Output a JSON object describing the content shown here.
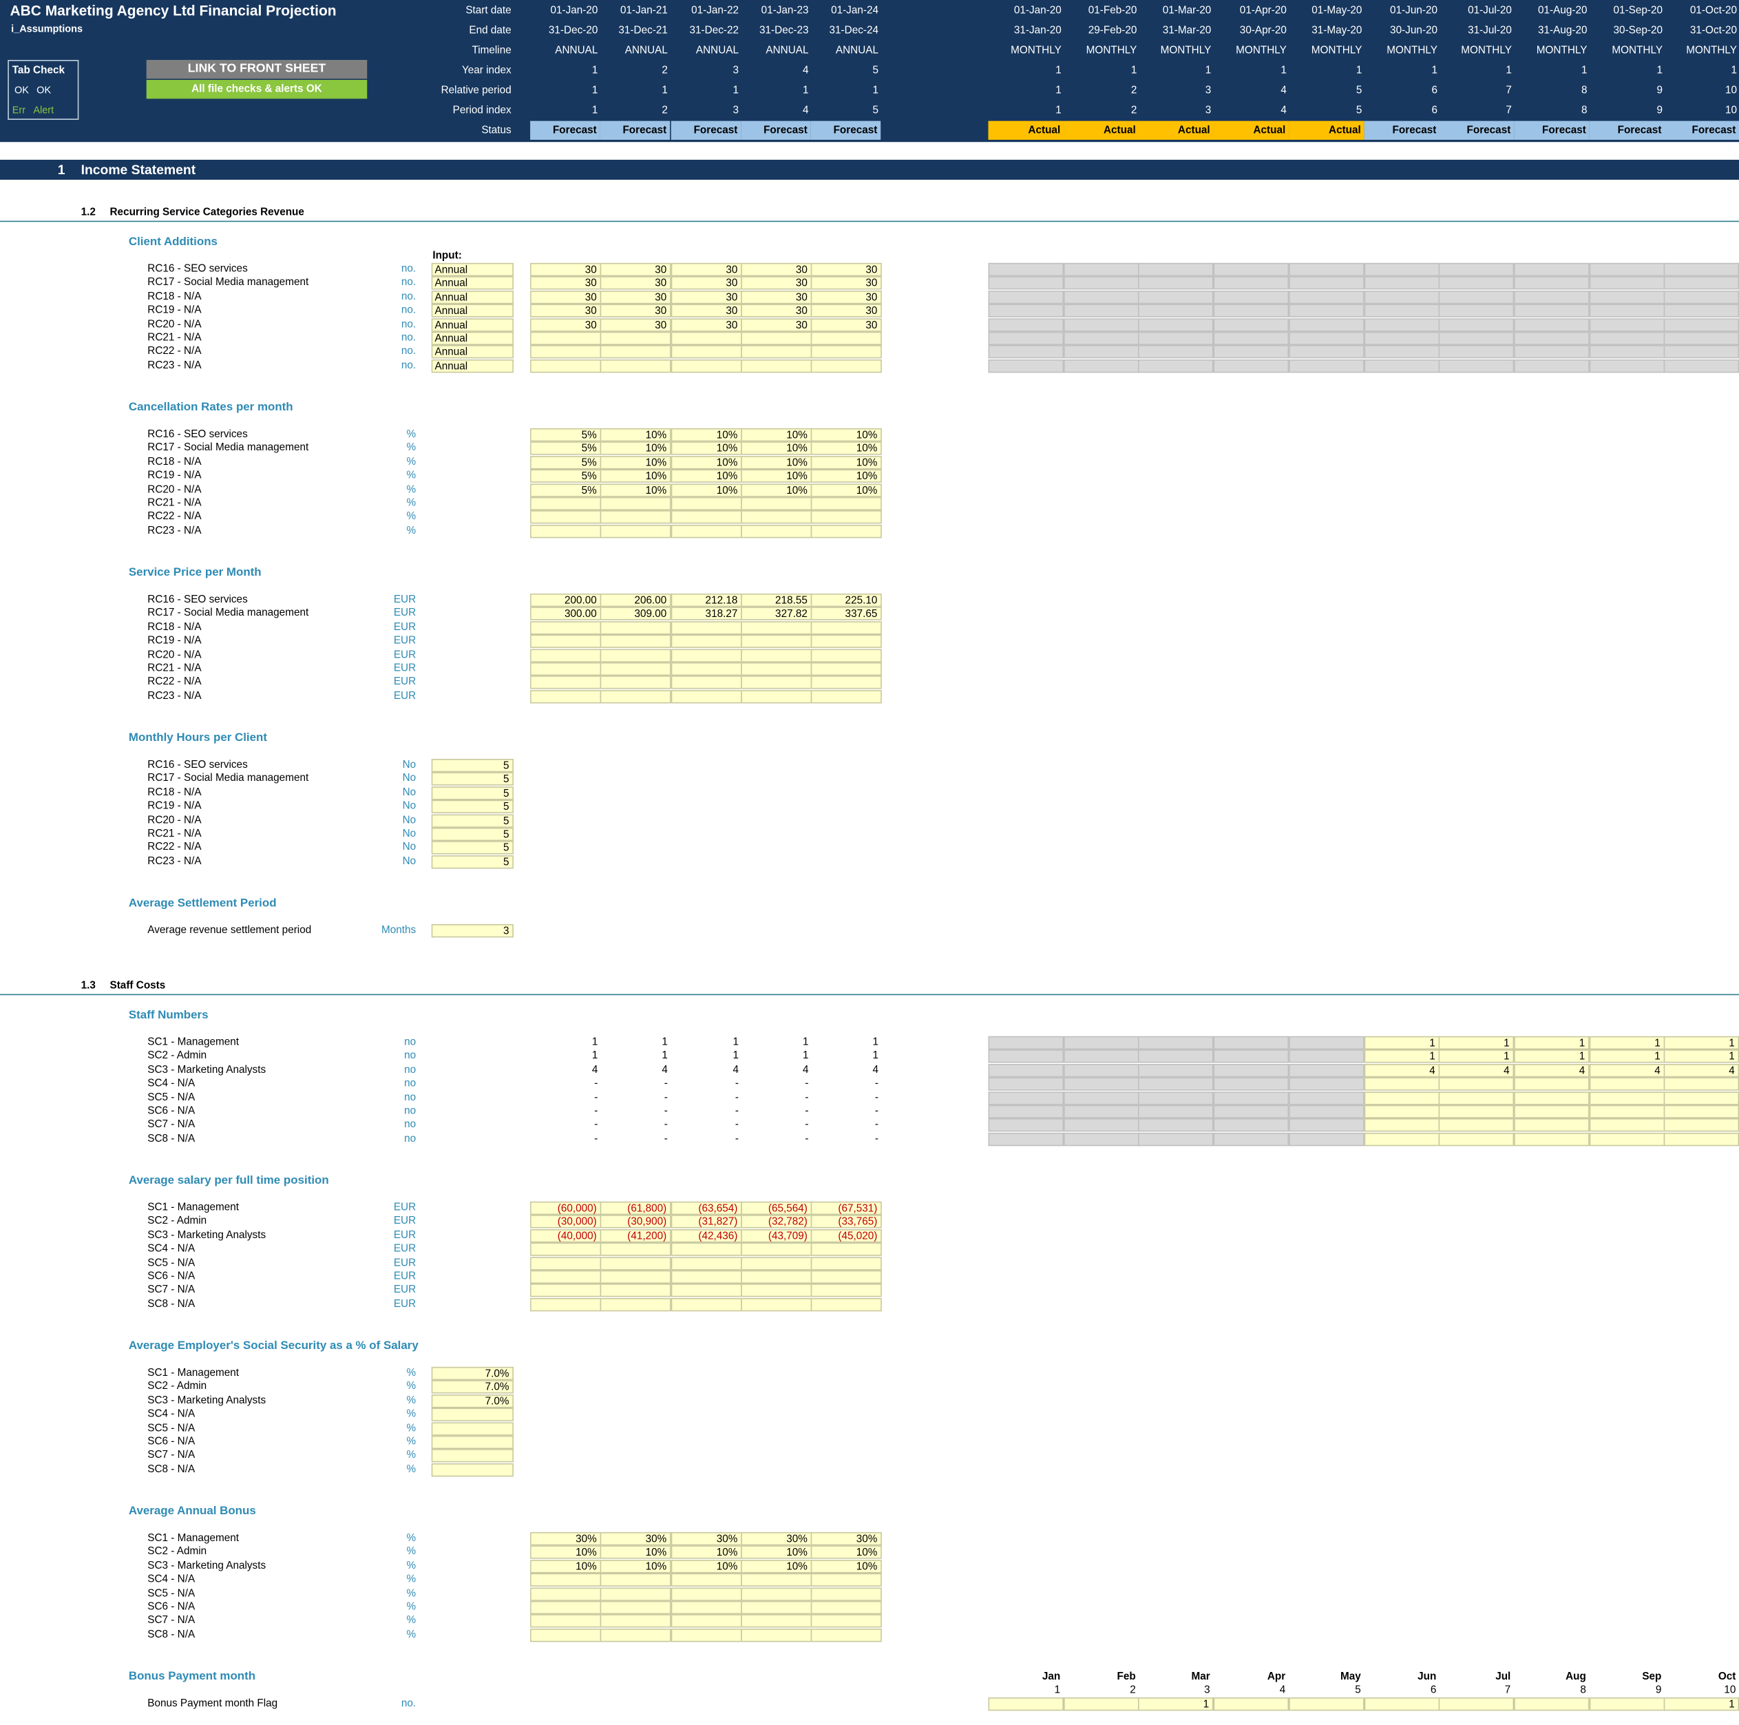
{
  "header": {
    "title": "ABC Marketing Agency Ltd Financial Projection",
    "sheet_name": "i_Assumptions",
    "tab_check": {
      "title": "Tab Check",
      "ok_1": "OK",
      "ok_2": "OK",
      "err": "Err",
      "alert": "Alert"
    },
    "link_button": "LINK TO FRONT SHEET",
    "checks_status": "All file checks & alerts OK",
    "row_labels": [
      "Start date",
      "End date",
      "Timeline",
      "Year index",
      "Relative period",
      "Period index",
      "Status"
    ],
    "annual": {
      "start": [
        "01-Jan-20",
        "01-Jan-21",
        "01-Jan-22",
        "01-Jan-23",
        "01-Jan-24"
      ],
      "end": [
        "31-Dec-20",
        "31-Dec-21",
        "31-Dec-22",
        "31-Dec-23",
        "31-Dec-24"
      ],
      "timeline": [
        "ANNUAL",
        "ANNUAL",
        "ANNUAL",
        "ANNUAL",
        "ANNUAL"
      ],
      "year_index": [
        "1",
        "2",
        "3",
        "4",
        "5"
      ],
      "relative": [
        "1",
        "1",
        "1",
        "1",
        "1"
      ],
      "period_index": [
        "1",
        "2",
        "3",
        "4",
        "5"
      ],
      "status": [
        "Forecast",
        "Forecast",
        "Forecast",
        "Forecast",
        "Forecast"
      ]
    },
    "monthly": {
      "start": [
        "01-Jan-20",
        "01-Feb-20",
        "01-Mar-20",
        "01-Apr-20",
        "01-May-20",
        "01-Jun-20",
        "01-Jul-20",
        "01-Aug-20",
        "01-Sep-20",
        "01-Oct-20"
      ],
      "end": [
        "31-Jan-20",
        "29-Feb-20",
        "31-Mar-20",
        "30-Apr-20",
        "31-May-20",
        "30-Jun-20",
        "31-Jul-20",
        "31-Aug-20",
        "30-Sep-20",
        "31-Oct-20"
      ],
      "timeline": [
        "MONTHLY",
        "MONTHLY",
        "MONTHLY",
        "MONTHLY",
        "MONTHLY",
        "MONTHLY",
        "MONTHLY",
        "MONTHLY",
        "MONTHLY",
        "MONTHLY"
      ],
      "year_index": [
        "1",
        "1",
        "1",
        "1",
        "1",
        "1",
        "1",
        "1",
        "1",
        "1"
      ],
      "relative": [
        "1",
        "2",
        "3",
        "4",
        "5",
        "6",
        "7",
        "8",
        "9",
        "10"
      ],
      "period_index": [
        "1",
        "2",
        "3",
        "4",
        "5",
        "6",
        "7",
        "8",
        "9",
        "10"
      ],
      "status": [
        "Actual",
        "Actual",
        "Actual",
        "Actual",
        "Actual",
        "Forecast",
        "Forecast",
        "Forecast",
        "Forecast",
        "Forecast"
      ]
    },
    "status_colors": {
      "Actual": "#ffc000",
      "Forecast": "#9dc3e6"
    }
  },
  "section1": {
    "number": "1",
    "title": "Income Statement"
  },
  "sub_1_2": {
    "number": "1.2",
    "title": "Recurring Service Categories Revenue"
  },
  "client_additions": {
    "title": "Client Additions",
    "input_label": "Input:",
    "rows": [
      {
        "label": "RC16 - SEO services",
        "unit": "no.",
        "input": "Annual",
        "annual": [
          "30",
          "30",
          "30",
          "30",
          "30"
        ]
      },
      {
        "label": "RC17 - Social Media management",
        "unit": "no.",
        "input": "Annual",
        "annual": [
          "30",
          "30",
          "30",
          "30",
          "30"
        ]
      },
      {
        "label": "RC18 - N/A",
        "unit": "no.",
        "input": "Annual",
        "annual": [
          "30",
          "30",
          "30",
          "30",
          "30"
        ]
      },
      {
        "label": "RC19 - N/A",
        "unit": "no.",
        "input": "Annual",
        "annual": [
          "30",
          "30",
          "30",
          "30",
          "30"
        ]
      },
      {
        "label": "RC20 - N/A",
        "unit": "no.",
        "input": "Annual",
        "annual": [
          "30",
          "30",
          "30",
          "30",
          "30"
        ]
      },
      {
        "label": "RC21 - N/A",
        "unit": "no.",
        "input": "Annual",
        "annual": [
          "",
          "",
          "",
          "",
          ""
        ]
      },
      {
        "label": "RC22 - N/A",
        "unit": "no.",
        "input": "Annual",
        "annual": [
          "",
          "",
          "",
          "",
          ""
        ]
      },
      {
        "label": "RC23 - N/A",
        "unit": "no.",
        "input": "Annual",
        "annual": [
          "",
          "",
          "",
          "",
          ""
        ]
      }
    ]
  },
  "cancellation": {
    "title": "Cancellation Rates per month",
    "rows": [
      {
        "label": "RC16 - SEO services",
        "unit": "%",
        "annual": [
          "5%",
          "10%",
          "10%",
          "10%",
          "10%"
        ]
      },
      {
        "label": "RC17 - Social Media management",
        "unit": "%",
        "annual": [
          "5%",
          "10%",
          "10%",
          "10%",
          "10%"
        ]
      },
      {
        "label": "RC18 - N/A",
        "unit": "%",
        "annual": [
          "5%",
          "10%",
          "10%",
          "10%",
          "10%"
        ]
      },
      {
        "label": "RC19 - N/A",
        "unit": "%",
        "annual": [
          "5%",
          "10%",
          "10%",
          "10%",
          "10%"
        ]
      },
      {
        "label": "RC20 - N/A",
        "unit": "%",
        "annual": [
          "5%",
          "10%",
          "10%",
          "10%",
          "10%"
        ]
      },
      {
        "label": "RC21 - N/A",
        "unit": "%",
        "annual": [
          "",
          "",
          "",
          "",
          ""
        ]
      },
      {
        "label": "RC22 - N/A",
        "unit": "%",
        "annual": [
          "",
          "",
          "",
          "",
          ""
        ]
      },
      {
        "label": "RC23 - N/A",
        "unit": "%",
        "annual": [
          "",
          "",
          "",
          "",
          ""
        ]
      }
    ]
  },
  "service_price": {
    "title": "Service Price per Month",
    "rows": [
      {
        "label": "RC16 - SEO services",
        "unit": "EUR",
        "annual": [
          "200.00",
          "206.00",
          "212.18",
          "218.55",
          "225.10"
        ]
      },
      {
        "label": "RC17 - Social Media management",
        "unit": "EUR",
        "annual": [
          "300.00",
          "309.00",
          "318.27",
          "327.82",
          "337.65"
        ]
      },
      {
        "label": "RC18 - N/A",
        "unit": "EUR",
        "annual": [
          "",
          "",
          "",
          "",
          ""
        ]
      },
      {
        "label": "RC19 - N/A",
        "unit": "EUR",
        "annual": [
          "",
          "",
          "",
          "",
          ""
        ]
      },
      {
        "label": "RC20 - N/A",
        "unit": "EUR",
        "annual": [
          "",
          "",
          "",
          "",
          ""
        ]
      },
      {
        "label": "RC21 - N/A",
        "unit": "EUR",
        "annual": [
          "",
          "",
          "",
          "",
          ""
        ]
      },
      {
        "label": "RC22 - N/A",
        "unit": "EUR",
        "annual": [
          "",
          "",
          "",
          "",
          ""
        ]
      },
      {
        "label": "RC23 - N/A",
        "unit": "EUR",
        "annual": [
          "",
          "",
          "",
          "",
          ""
        ]
      }
    ]
  },
  "monthly_hours": {
    "title": "Monthly Hours per Client",
    "rows": [
      {
        "label": "RC16 - SEO services",
        "unit": "No",
        "value": "5"
      },
      {
        "label": "RC17 - Social Media management",
        "unit": "No",
        "value": "5"
      },
      {
        "label": "RC18 - N/A",
        "unit": "No",
        "value": "5"
      },
      {
        "label": "RC19 - N/A",
        "unit": "No",
        "value": "5"
      },
      {
        "label": "RC20 - N/A",
        "unit": "No",
        "value": "5"
      },
      {
        "label": "RC21 - N/A",
        "unit": "No",
        "value": "5"
      },
      {
        "label": "RC22 - N/A",
        "unit": "No",
        "value": "5"
      },
      {
        "label": "RC23 - N/A",
        "unit": "No",
        "value": "5"
      }
    ]
  },
  "settlement": {
    "title": "Average Settlement Period",
    "rows": [
      {
        "label": "Average revenue settlement period",
        "unit": "Months",
        "value": "3"
      }
    ]
  },
  "sub_1_3": {
    "number": "1.3",
    "title": "Staff Costs"
  },
  "staff_numbers": {
    "title": "Staff Numbers",
    "rows": [
      {
        "label": "SC1 - Management",
        "unit": "no",
        "annual": [
          "1",
          "1",
          "1",
          "1",
          "1"
        ],
        "monthly": [
          "1",
          "1",
          "1",
          "1",
          "1"
        ]
      },
      {
        "label": "SC2 - Admin",
        "unit": "no",
        "annual": [
          "1",
          "1",
          "1",
          "1",
          "1"
        ],
        "monthly": [
          "1",
          "1",
          "1",
          "1",
          "1"
        ]
      },
      {
        "label": "SC3 - Marketing Analysts",
        "unit": "no",
        "annual": [
          "4",
          "4",
          "4",
          "4",
          "4"
        ],
        "monthly": [
          "4",
          "4",
          "4",
          "4",
          "4"
        ]
      },
      {
        "label": "SC4 - N/A",
        "unit": "no",
        "annual": [
          "-",
          "-",
          "-",
          "-",
          "-"
        ],
        "monthly": [
          "",
          "",
          "",
          "",
          ""
        ]
      },
      {
        "label": "SC5 - N/A",
        "unit": "no",
        "annual": [
          "-",
          "-",
          "-",
          "-",
          "-"
        ],
        "monthly": [
          "",
          "",
          "",
          "",
          ""
        ]
      },
      {
        "label": "SC6 - N/A",
        "unit": "no",
        "annual": [
          "-",
          "-",
          "-",
          "-",
          "-"
        ],
        "monthly": [
          "",
          "",
          "",
          "",
          ""
        ]
      },
      {
        "label": "SC7 - N/A",
        "unit": "no",
        "annual": [
          "-",
          "-",
          "-",
          "-",
          "-"
        ],
        "monthly": [
          "",
          "",
          "",
          "",
          ""
        ]
      },
      {
        "label": "SC8 - N/A",
        "unit": "no",
        "annual": [
          "-",
          "-",
          "-",
          "-",
          "-"
        ],
        "monthly": [
          "",
          "",
          "",
          "",
          ""
        ]
      }
    ]
  },
  "salary": {
    "title": "Average salary per full time position",
    "rows": [
      {
        "label": "SC1 - Management",
        "unit": "EUR",
        "annual": [
          "(60,000)",
          "(61,800)",
          "(63,654)",
          "(65,564)",
          "(67,531)"
        ]
      },
      {
        "label": "SC2 - Admin",
        "unit": "EUR",
        "annual": [
          "(30,000)",
          "(30,900)",
          "(31,827)",
          "(32,782)",
          "(33,765)"
        ]
      },
      {
        "label": "SC3 - Marketing Analysts",
        "unit": "EUR",
        "annual": [
          "(40,000)",
          "(41,200)",
          "(42,436)",
          "(43,709)",
          "(45,020)"
        ]
      },
      {
        "label": "SC4 - N/A",
        "unit": "EUR",
        "annual": [
          "",
          "",
          "",
          "",
          ""
        ]
      },
      {
        "label": "SC5 - N/A",
        "unit": "EUR",
        "annual": [
          "",
          "",
          "",
          "",
          ""
        ]
      },
      {
        "label": "SC6 - N/A",
        "unit": "EUR",
        "annual": [
          "",
          "",
          "",
          "",
          ""
        ]
      },
      {
        "label": "SC7 - N/A",
        "unit": "EUR",
        "annual": [
          "",
          "",
          "",
          "",
          ""
        ]
      },
      {
        "label": "SC8 - N/A",
        "unit": "EUR",
        "annual": [
          "",
          "",
          "",
          "",
          ""
        ]
      }
    ]
  },
  "social_security": {
    "title": "Average Employer's Social Security as a % of Salary",
    "rows": [
      {
        "label": "SC1 - Management",
        "unit": "%",
        "value": "7.0%"
      },
      {
        "label": "SC2 - Admin",
        "unit": "%",
        "value": "7.0%"
      },
      {
        "label": "SC3 - Marketing Analysts",
        "unit": "%",
        "value": "7.0%"
      },
      {
        "label": "SC4 - N/A",
        "unit": "%",
        "value": ""
      },
      {
        "label": "SC5 - N/A",
        "unit": "%",
        "value": ""
      },
      {
        "label": "SC6 - N/A",
        "unit": "%",
        "value": ""
      },
      {
        "label": "SC7 - N/A",
        "unit": "%",
        "value": ""
      },
      {
        "label": "SC8 - N/A",
        "unit": "%",
        "value": ""
      }
    ]
  },
  "bonus": {
    "title": "Average Annual Bonus",
    "rows": [
      {
        "label": "SC1 - Management",
        "unit": "%",
        "annual": [
          "30%",
          "30%",
          "30%",
          "30%",
          "30%"
        ]
      },
      {
        "label": "SC2 - Admin",
        "unit": "%",
        "annual": [
          "10%",
          "10%",
          "10%",
          "10%",
          "10%"
        ]
      },
      {
        "label": "SC3 - Marketing Analysts",
        "unit": "%",
        "annual": [
          "10%",
          "10%",
          "10%",
          "10%",
          "10%"
        ]
      },
      {
        "label": "SC4 - N/A",
        "unit": "%",
        "annual": [
          "",
          "",
          "",
          "",
          ""
        ]
      },
      {
        "label": "SC5 - N/A",
        "unit": "%",
        "annual": [
          "",
          "",
          "",
          "",
          ""
        ]
      },
      {
        "label": "SC6 - N/A",
        "unit": "%",
        "annual": [
          "",
          "",
          "",
          "",
          ""
        ]
      },
      {
        "label": "SC7 - N/A",
        "unit": "%",
        "annual": [
          "",
          "",
          "",
          "",
          ""
        ]
      },
      {
        "label": "SC8 - N/A",
        "unit": "%",
        "annual": [
          "",
          "",
          "",
          "",
          ""
        ]
      }
    ]
  },
  "bonus_month": {
    "title": "Bonus Payment month",
    "months": [
      "Jan",
      "Feb",
      "Mar",
      "Apr",
      "May",
      "Jun",
      "Jul",
      "Aug",
      "Sep",
      "Oct"
    ],
    "month_numbers": [
      "1",
      "2",
      "3",
      "4",
      "5",
      "6",
      "7",
      "8",
      "9",
      "10"
    ],
    "flag_label": "Bonus Payment month Flag",
    "flag_unit": "no.",
    "flags": [
      "",
      "",
      "1",
      "",
      "",
      "",
      "",
      "",
      "",
      "1"
    ]
  }
}
